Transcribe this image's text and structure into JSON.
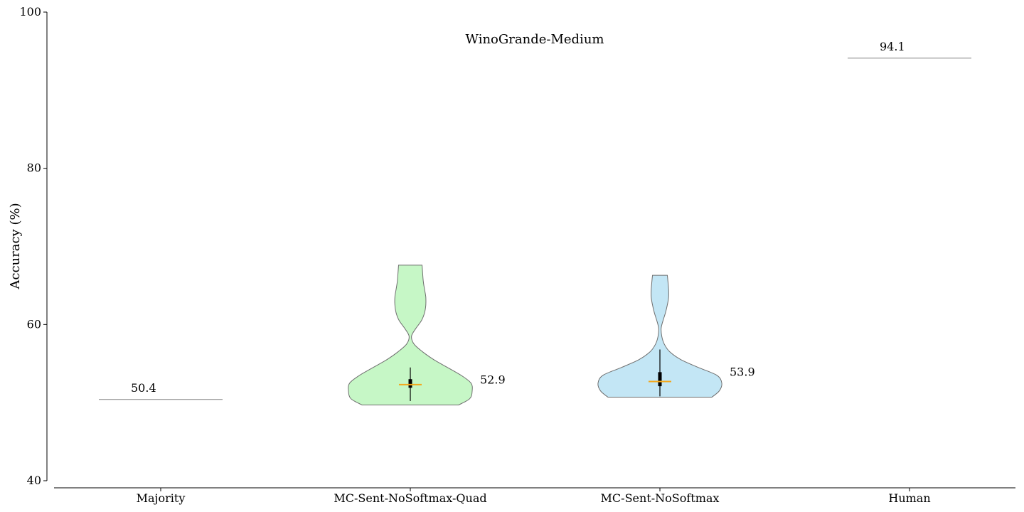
{
  "chart_data": {
    "type": "violin",
    "title": "WinoGrande-Medium",
    "xlabel": "",
    "ylabel": "Accuracy (%)",
    "ylim": [
      40,
      100
    ],
    "yticks": [
      40,
      60,
      80,
      100
    ],
    "grid": false,
    "categories": [
      "Majority",
      "MC-Sent-NoSoftmax-Quad",
      "MC-Sent-NoSoftmax",
      "Human"
    ],
    "reference_lines": [
      {
        "category": "Majority",
        "value": 50.4,
        "label": "50.4"
      },
      {
        "category": "Human",
        "value": 94.1,
        "label": "94.1"
      }
    ],
    "violins": [
      {
        "category": "MC-Sent-NoSoftmax-Quad",
        "color": "#c6f7c6",
        "min": 49.7,
        "max": 67.6,
        "q1": 51.9,
        "q3": 53.0,
        "whisker_low": 50.2,
        "whisker_high": 54.5,
        "mean": 52.3,
        "label": "52.9",
        "label_value": 52.9,
        "density": [
          [
            49.7,
            0.78
          ],
          [
            50.5,
            0.96
          ],
          [
            51.5,
            1.0
          ],
          [
            52.5,
            0.98
          ],
          [
            53.5,
            0.82
          ],
          [
            54.5,
            0.6
          ],
          [
            55.5,
            0.38
          ],
          [
            56.5,
            0.2
          ],
          [
            57.5,
            0.06
          ],
          [
            58.5,
            0.02
          ],
          [
            59.5,
            0.09
          ],
          [
            60.5,
            0.18
          ],
          [
            61.5,
            0.23
          ],
          [
            62.5,
            0.25
          ],
          [
            63.5,
            0.25
          ],
          [
            64.5,
            0.23
          ],
          [
            65.5,
            0.21
          ],
          [
            66.5,
            0.2
          ],
          [
            67.6,
            0.19
          ]
        ]
      },
      {
        "category": "MC-Sent-NoSoftmax",
        "color": "#c3e6f5",
        "min": 50.7,
        "max": 66.3,
        "q1": 52.1,
        "q3": 53.9,
        "whisker_low": 50.8,
        "whisker_high": 56.8,
        "mean": 52.7,
        "label": "53.9",
        "label_value": 53.9,
        "density": [
          [
            50.7,
            0.84
          ],
          [
            51.5,
            0.96
          ],
          [
            52.5,
            1.0
          ],
          [
            53.5,
            0.92
          ],
          [
            54.5,
            0.62
          ],
          [
            55.5,
            0.34
          ],
          [
            56.5,
            0.16
          ],
          [
            57.5,
            0.07
          ],
          [
            58.5,
            0.03
          ],
          [
            59.5,
            0.02
          ],
          [
            60.5,
            0.05
          ],
          [
            61.5,
            0.09
          ],
          [
            62.5,
            0.12
          ],
          [
            63.5,
            0.14
          ],
          [
            64.5,
            0.14
          ],
          [
            65.5,
            0.13
          ],
          [
            66.3,
            0.12
          ]
        ]
      }
    ]
  }
}
